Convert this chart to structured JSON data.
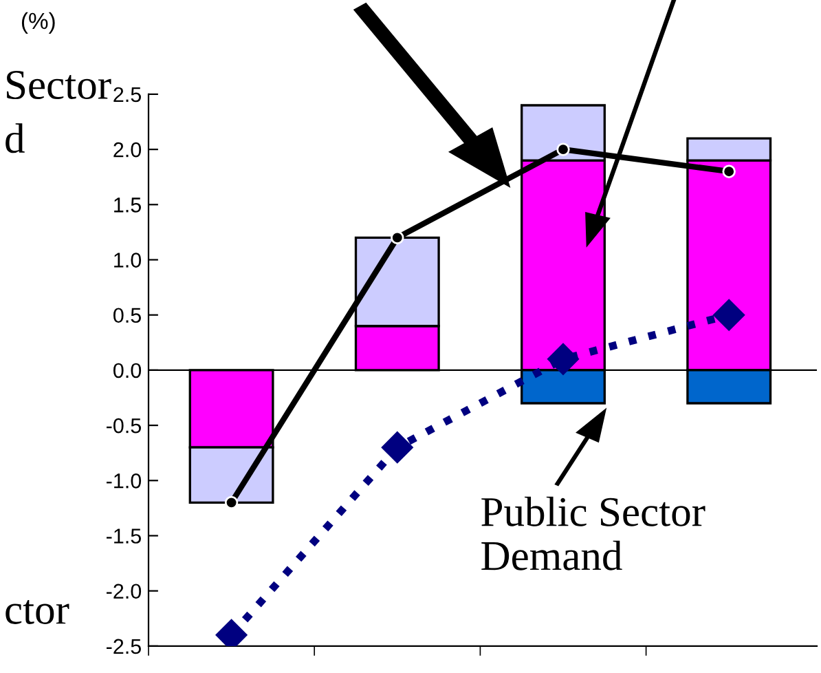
{
  "chart_data": {
    "type": "bar",
    "stacked": true,
    "categories": [
      null,
      null,
      null,
      null
    ],
    "series": [
      {
        "color": "#ff00ff",
        "values": [
          -0.7,
          0.4,
          1.9,
          1.9
        ]
      },
      {
        "color": "#ccccff",
        "values": [
          -0.5,
          0.8,
          0.5,
          0.2
        ]
      },
      {
        "color": "#0066cc",
        "values": [
          null,
          null,
          -0.3,
          -0.3
        ]
      },
      {
        "type": "line",
        "color": "#000000",
        "marker": "circle",
        "line_style": "solid",
        "values": [
          -1.2,
          1.2,
          2.0,
          1.8
        ]
      },
      {
        "type": "line",
        "color": "#000080",
        "marker": "diamond",
        "line_style": "dotted",
        "values": [
          -2.4,
          -0.7,
          0.1,
          0.5
        ]
      }
    ],
    "ylim": [
      -2.5,
      2.5
    ],
    "yticks": [
      2.5,
      {
        "value": 2.0,
        "label": "2.0"
      },
      1.5,
      {
        "value": 1.0,
        "label": "1.0"
      },
      0.5,
      {
        "value": 0.0,
        "label": "0.0"
      },
      -0.5,
      {
        "value": -1.0,
        "label": "-1.0"
      },
      -1.5,
      {
        "value": -2.0,
        "label": "-2.0"
      },
      -2.5
    ],
    "ref_lines": [
      {
        "axis": "y",
        "value": 0,
        "color": "#000000"
      }
    ],
    "annotations": [
      "(%)",
      "Sector",
      "d",
      "ctor",
      "Public Sector\nDemand"
    ],
    "grid": false,
    "legend": false
  }
}
